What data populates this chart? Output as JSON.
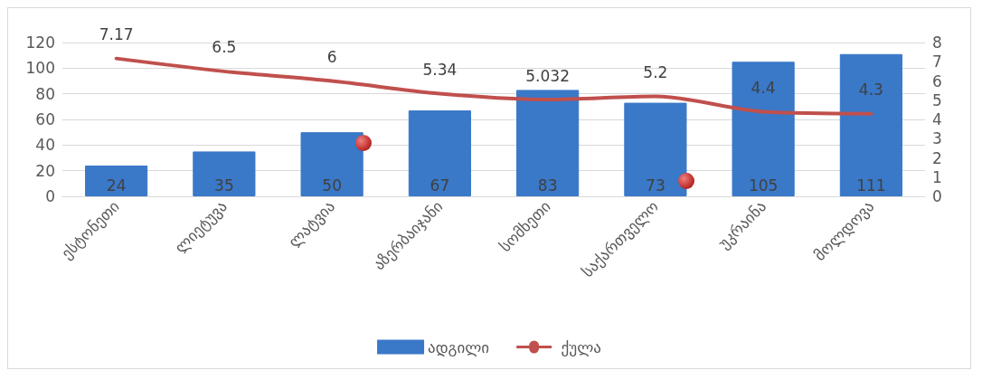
{
  "chart_data": {
    "type": "bar",
    "categories": [
      "ესტონეთი",
      "ლიეტუვა",
      "ლატვია",
      "აზერბაიჯანი",
      "სომხეთი",
      "საქართველო",
      "უკრაინა",
      "მოლდოვა"
    ],
    "series": [
      {
        "name": "ადგილი",
        "color": "#3a78c8",
        "values": [
          24,
          35,
          50,
          67,
          83,
          73,
          105,
          111
        ]
      },
      {
        "name": "ქულა",
        "type": "line",
        "axis": "y2",
        "color": "#c0504d",
        "values": [
          7.17,
          6.5,
          6,
          5.34,
          5.032,
          5.2,
          4.4,
          4.3
        ]
      }
    ],
    "ylim": [
      0,
      120
    ],
    "yticks": [
      0,
      20,
      40,
      60,
      80,
      100,
      120
    ],
    "y2lim": [
      0,
      8
    ],
    "y2ticks": [
      0,
      1,
      2,
      3,
      4,
      5,
      6,
      7,
      8
    ],
    "grid": "y",
    "legend": "bottom",
    "data_labels": true,
    "marker": "none",
    "line_style": "solid"
  }
}
